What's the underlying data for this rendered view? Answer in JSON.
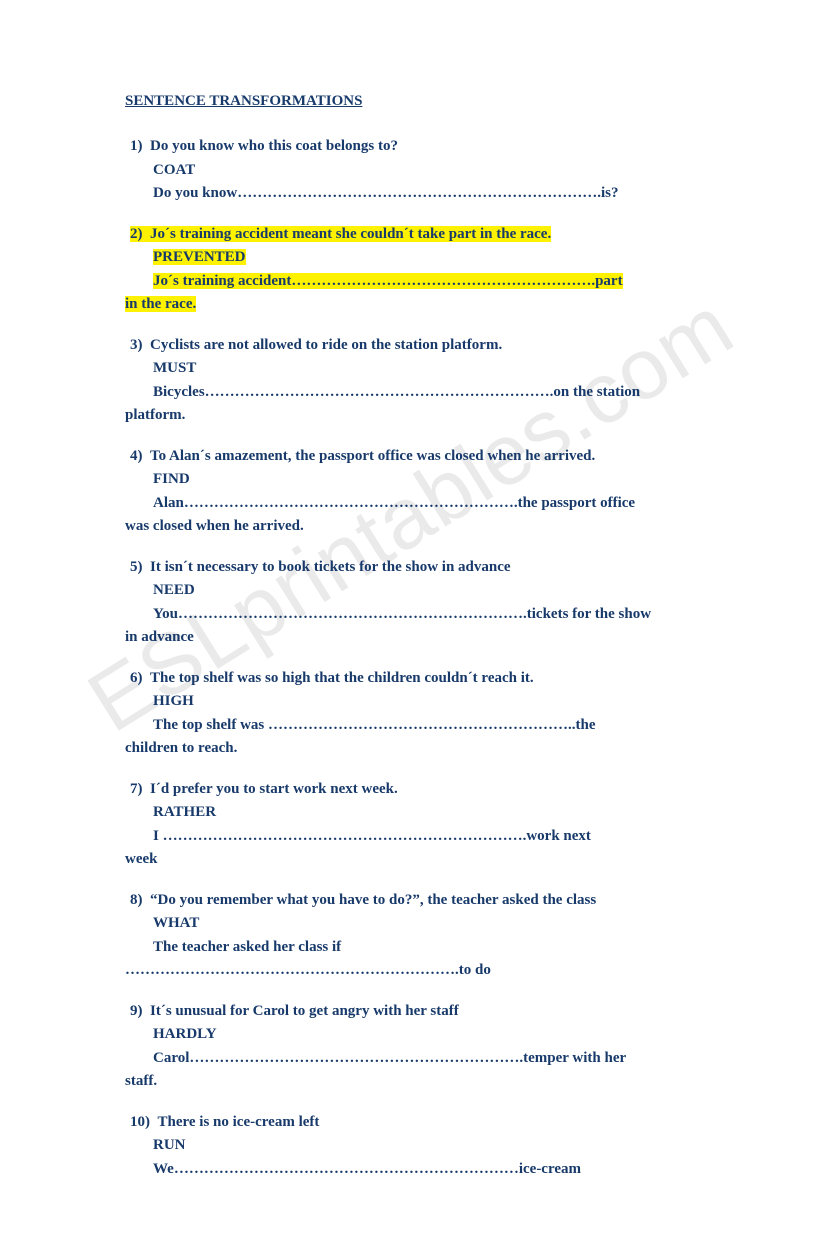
{
  "title": "SENTENCE TRANSFORMATIONS",
  "watermark": "ESLprintables.com",
  "colors": {
    "text": "#183a6b",
    "highlight": "#fef200",
    "watermark": "#d9d9d9",
    "background": "#ffffff"
  },
  "questions": [
    {
      "num": "1)",
      "prompt": "Do you know who this coat belongs to?",
      "keyword": "COAT",
      "answer_prefix": "Do you know",
      "blank": "……………………………………………………………….",
      "answer_suffix": "is?",
      "highlighted": false
    },
    {
      "num": "2)",
      "prompt": "Jo´s training accident meant she couldn´t take part in the race.",
      "keyword": "PREVENTED",
      "answer_prefix": "Jo´s training accident",
      "blank": "…………………………………………………….",
      "answer_suffix": "part",
      "continuation": "in the race.",
      "highlighted": true
    },
    {
      "num": "3)",
      "prompt": "Cyclists are not allowed to ride on the station platform.",
      "keyword": "MUST",
      "answer_prefix": "Bicycles",
      "blank": "…………………………………………………………….",
      "answer_suffix": "on the station",
      "continuation": "platform.",
      "highlighted": false
    },
    {
      "num": "4)",
      "prompt": "To Alan´s amazement, the passport office was closed when he arrived.",
      "keyword": "FIND",
      "answer_prefix": "Alan",
      "blank": "………………………………………………………….",
      "answer_suffix": "the passport office",
      "continuation": "was closed when he arrived.",
      "highlighted": false
    },
    {
      "num": "5)",
      "prompt": "It isn´t necessary to book tickets for the show in advance",
      "keyword": "NEED",
      "answer_prefix": "You",
      "blank": "…………………………………………………………….",
      "answer_suffix": "tickets for the show",
      "continuation": "in advance",
      "highlighted": false
    },
    {
      "num": "6)",
      "prompt": "The top shelf was so high that the children couldn´t reach it.",
      "keyword": "HIGH",
      "answer_prefix": "The top shelf was ",
      "blank": "……………………………………………………..",
      "answer_suffix": "the",
      "continuation": "children to reach.",
      "highlighted": false
    },
    {
      "num": "7)",
      "prompt": "I´d prefer you to start work next week.",
      "keyword": "RATHER",
      "answer_prefix": "I ",
      "blank": "……………………………………………………………….",
      "answer_suffix": "work next",
      "continuation": "week",
      "highlighted": false
    },
    {
      "num": "8)",
      "prompt": "“Do you remember what you have to do?”, the teacher asked the class",
      "keyword": "WHAT",
      "answer_prefix": "The teacher asked her class if",
      "blank": "",
      "answer_suffix": "",
      "continuation_blank": "………………………………………………………….",
      "continuation": "to do",
      "highlighted": false
    },
    {
      "num": "9)",
      "prompt": "It´s unusual for Carol to get angry with her staff",
      "keyword": "HARDLY",
      "answer_prefix": "Carol",
      "blank": "………………………………………………………….",
      "answer_suffix": "temper with her",
      "continuation": "staff.",
      "highlighted": false
    },
    {
      "num": "10)",
      "prompt": "There is no ice-cream left",
      "keyword": "RUN",
      "answer_prefix": "We",
      "blank": "……………………………………………………………",
      "answer_suffix": "ice-cream",
      "highlighted": false
    }
  ]
}
